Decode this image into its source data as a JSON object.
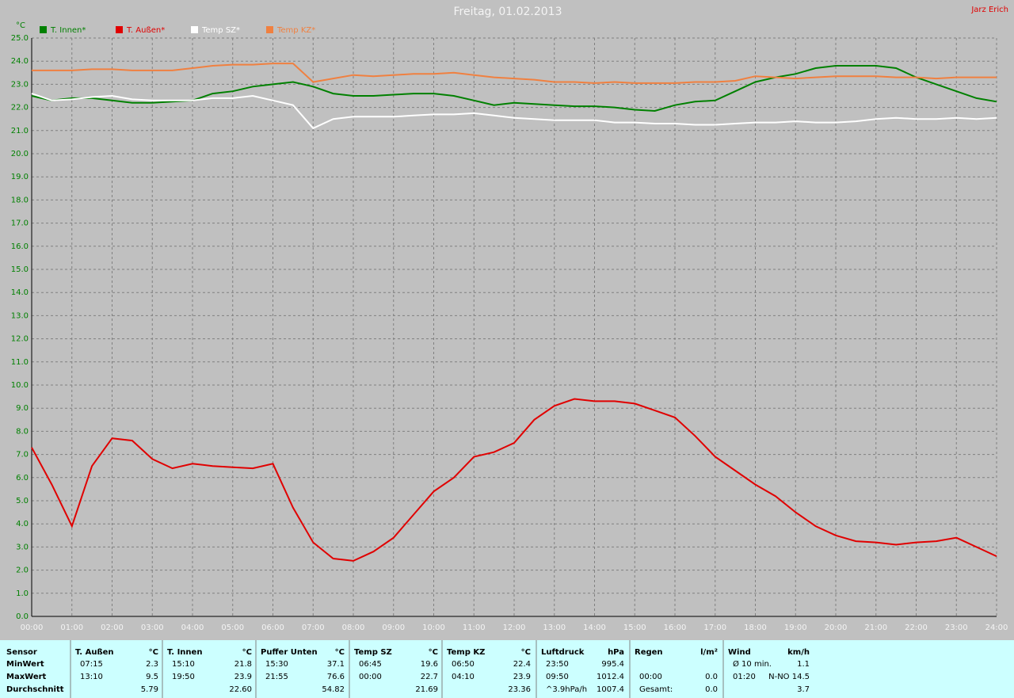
{
  "chart_data": {
    "type": "line",
    "title": "Freitag, 01.02.2013",
    "author": "Jarz Erich",
    "y_label": "°C",
    "grid": true,
    "x": [
      0,
      0.5,
      1,
      1.5,
      2,
      2.5,
      3,
      3.5,
      4,
      4.5,
      5,
      5.5,
      6,
      6.5,
      7,
      7.5,
      8,
      8.5,
      9,
      9.5,
      10,
      10.5,
      11,
      11.5,
      12,
      12.5,
      13,
      13.5,
      14,
      14.5,
      15,
      15.5,
      16,
      16.5,
      17,
      17.5,
      18,
      18.5,
      19,
      19.5,
      20,
      20.5,
      21,
      21.5,
      22,
      22.5,
      23,
      23.5,
      24
    ],
    "xlim": [
      0,
      24
    ],
    "ylim": [
      0,
      25
    ],
    "xticks": [
      {
        "value": 0,
        "label": "00:00"
      },
      {
        "value": 1,
        "label": "01:00"
      },
      {
        "value": 2,
        "label": "02:00"
      },
      {
        "value": 3,
        "label": "03:00"
      },
      {
        "value": 4,
        "label": "04:00"
      },
      {
        "value": 5,
        "label": "05:00"
      },
      {
        "value": 6,
        "label": "06:00"
      },
      {
        "value": 7,
        "label": "07:00"
      },
      {
        "value": 8,
        "label": "08:00"
      },
      {
        "value": 9,
        "label": "09:00"
      },
      {
        "value": 10,
        "label": "10:00"
      },
      {
        "value": 11,
        "label": "11:00"
      },
      {
        "value": 12,
        "label": "12:00"
      },
      {
        "value": 13,
        "label": "13:00"
      },
      {
        "value": 14,
        "label": "14:00"
      },
      {
        "value": 15,
        "label": "15:00"
      },
      {
        "value": 16,
        "label": "16:00"
      },
      {
        "value": 17,
        "label": "17:00"
      },
      {
        "value": 18,
        "label": "18:00"
      },
      {
        "value": 19,
        "label": "19:00"
      },
      {
        "value": 20,
        "label": "20:00"
      },
      {
        "value": 21,
        "label": "21:00"
      },
      {
        "value": 22,
        "label": "22:00"
      },
      {
        "value": 23,
        "label": "23:00"
      },
      {
        "value": 24,
        "label": "24:00"
      }
    ],
    "yticks": [
      {
        "value": 0,
        "label": "0.0"
      },
      {
        "value": 1,
        "label": "1.0"
      },
      {
        "value": 2,
        "label": "2.0"
      },
      {
        "value": 3,
        "label": "3.0"
      },
      {
        "value": 4,
        "label": "4.0"
      },
      {
        "value": 5,
        "label": "5.0"
      },
      {
        "value": 6,
        "label": "6.0"
      },
      {
        "value": 7,
        "label": "7.0"
      },
      {
        "value": 8,
        "label": "8.0"
      },
      {
        "value": 9,
        "label": "9.0"
      },
      {
        "value": 10,
        "label": "10.0"
      },
      {
        "value": 11,
        "label": "11.0"
      },
      {
        "value": 12,
        "label": "12.0"
      },
      {
        "value": 13,
        "label": "13.0"
      },
      {
        "value": 14,
        "label": "14.0"
      },
      {
        "value": 15,
        "label": "15.0"
      },
      {
        "value": 16,
        "label": "16.0"
      },
      {
        "value": 17,
        "label": "17.0"
      },
      {
        "value": 18,
        "label": "18.0"
      },
      {
        "value": 19,
        "label": "19.0"
      },
      {
        "value": 20,
        "label": "20.0"
      },
      {
        "value": 21,
        "label": "21.0"
      },
      {
        "value": 22,
        "label": "22.0"
      },
      {
        "value": 23,
        "label": "23.0"
      },
      {
        "value": 24,
        "label": "24.0"
      },
      {
        "value": 25,
        "label": "25.0"
      }
    ],
    "series": [
      {
        "name": "T. Innen*",
        "color": "#008000",
        "values": [
          22.5,
          22.3,
          22.4,
          22.4,
          22.3,
          22.2,
          22.2,
          22.25,
          22.3,
          22.6,
          22.7,
          22.9,
          23.0,
          23.1,
          22.9,
          22.6,
          22.5,
          22.5,
          22.55,
          22.6,
          22.6,
          22.5,
          22.3,
          22.1,
          22.2,
          22.15,
          22.1,
          22.05,
          22.05,
          22.0,
          21.9,
          21.85,
          22.1,
          22.25,
          22.3,
          22.7,
          23.1,
          23.3,
          23.45,
          23.7,
          23.8,
          23.8,
          23.8,
          23.7,
          23.3,
          23.0,
          22.7,
          22.4,
          22.25
        ]
      },
      {
        "name": "T. Außen*",
        "color": "#e00000",
        "values": [
          7.3,
          5.7,
          3.9,
          6.5,
          7.7,
          7.6,
          6.8,
          6.4,
          6.6,
          6.5,
          6.45,
          6.4,
          6.6,
          4.7,
          3.2,
          2.5,
          2.4,
          2.8,
          3.4,
          4.4,
          5.4,
          6.0,
          6.9,
          7.1,
          7.5,
          8.5,
          9.1,
          9.4,
          9.3,
          9.3,
          9.2,
          8.9,
          8.6,
          7.8,
          6.9,
          6.3,
          5.7,
          5.2,
          4.5,
          3.9,
          3.5,
          3.25,
          3.2,
          3.1,
          3.2,
          3.25,
          3.4,
          3.0,
          2.6
        ]
      },
      {
        "name": "Temp SZ*",
        "color": "#ffffff",
        "values": [
          22.6,
          22.3,
          22.35,
          22.45,
          22.5,
          22.35,
          22.3,
          22.3,
          22.3,
          22.4,
          22.4,
          22.5,
          22.3,
          22.1,
          21.1,
          21.5,
          21.6,
          21.6,
          21.6,
          21.65,
          21.7,
          21.7,
          21.75,
          21.65,
          21.55,
          21.5,
          21.45,
          21.45,
          21.45,
          21.35,
          21.35,
          21.3,
          21.3,
          21.25,
          21.25,
          21.3,
          21.35,
          21.35,
          21.4,
          21.35,
          21.35,
          21.4,
          21.5,
          21.55,
          21.5,
          21.5,
          21.55,
          21.5,
          21.55
        ]
      },
      {
        "name": "Temp KZ*",
        "color": "#f08040",
        "values": [
          23.6,
          23.6,
          23.6,
          23.65,
          23.65,
          23.6,
          23.6,
          23.6,
          23.7,
          23.8,
          23.85,
          23.85,
          23.9,
          23.9,
          23.1,
          23.25,
          23.4,
          23.35,
          23.4,
          23.45,
          23.45,
          23.5,
          23.4,
          23.3,
          23.25,
          23.2,
          23.1,
          23.1,
          23.05,
          23.1,
          23.05,
          23.05,
          23.05,
          23.1,
          23.1,
          23.15,
          23.35,
          23.3,
          23.25,
          23.3,
          23.35,
          23.35,
          23.35,
          23.3,
          23.3,
          23.25,
          23.3,
          23.3,
          23.3
        ]
      }
    ]
  },
  "table": {
    "labels": [
      "Sensor",
      "MinWert",
      "MaxWert",
      "Durchschnitt"
    ],
    "groups": [
      {
        "title": "T. Außen",
        "unit": "°C",
        "rows": [
          [
            "07:15",
            "2.3"
          ],
          [
            "13:10",
            "9.5"
          ],
          [
            null,
            "5.79"
          ]
        ]
      },
      {
        "title": "T. Innen",
        "unit": "°C",
        "rows": [
          [
            "15:10",
            "21.8"
          ],
          [
            "19:50",
            "23.9"
          ],
          [
            null,
            "22.60"
          ]
        ]
      },
      {
        "title": "Puffer Unten",
        "unit": "°C",
        "rows": [
          [
            "15:30",
            "37.1"
          ],
          [
            "21:55",
            "76.6"
          ],
          [
            null,
            "54.82"
          ]
        ]
      },
      {
        "title": "Temp SZ",
        "unit": "°C",
        "rows": [
          [
            "06:45",
            "19.6"
          ],
          [
            "00:00",
            "22.7"
          ],
          [
            null,
            "21.69"
          ]
        ]
      },
      {
        "title": "Temp KZ",
        "unit": "°C",
        "rows": [
          [
            "06:50",
            "22.4"
          ],
          [
            "04:10",
            "23.9"
          ],
          [
            null,
            "23.36"
          ]
        ]
      },
      {
        "title": "Luftdruck",
        "unit": "hPa",
        "rows": [
          [
            "23:50",
            "995.4"
          ],
          [
            "09:50",
            "1012.4"
          ],
          [
            "^3.9hPa/h",
            "1007.4"
          ]
        ]
      },
      {
        "title": "Regen",
        "unit": "l/m²",
        "rows": [
          [
            null,
            null
          ],
          [
            "00:00",
            "0.0"
          ],
          [
            "Gesamt:",
            "0.0"
          ]
        ]
      },
      {
        "title": "Wind",
        "unit": "km/h",
        "rows": [
          [
            "Ø 10 min.",
            "1.1"
          ],
          [
            "01:20",
            "N-NO 14.5"
          ],
          [
            null,
            "3.7"
          ]
        ]
      }
    ]
  }
}
